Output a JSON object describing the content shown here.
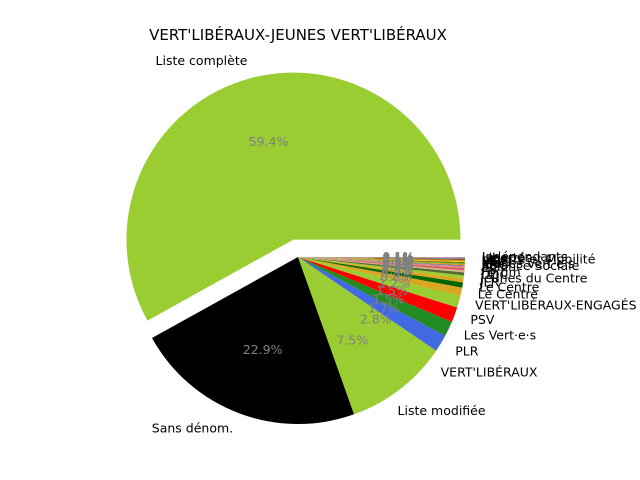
{
  "chart_data": {
    "type": "pie",
    "title": "VERT'LIBÉRAUX-JEUNES VERT'LIBÉRAUX",
    "start_angle_deg": 0,
    "direction": "counterclockwise",
    "exploded_slice": "Liste complète",
    "slices": [
      {
        "label": "Liste complète",
        "pct_label": "59.4%",
        "value": 59.4,
        "color": "#9acd32"
      },
      {
        "label": "Sans dénom.",
        "pct_label": "22.9%",
        "value": 22.9,
        "color": "#000000"
      },
      {
        "label": "Liste modifiée",
        "pct_label": "7.5%",
        "value": 7.5,
        "color": "#9acd32"
      },
      {
        "label": "VERT'LIBÉRAUX",
        "pct_label": "2.8%",
        "value": 2.8,
        "color": "#9acd32"
      },
      {
        "label": "PLR",
        "pct_label": "1.7%",
        "value": 1.7,
        "color": "#4169e1"
      },
      {
        "label": "Les Vert·e·s",
        "pct_label": "1.5%",
        "value": 1.5,
        "color": "#228b22"
      },
      {
        "label": "PSV",
        "pct_label": "1.5%",
        "value": 1.5,
        "color": "#ff0000"
      },
      {
        "label": "VERT'LIBÉRAUX-ENGAGÉS",
        "pct_label": "1.2%",
        "value": 1.2,
        "color": "#9acd32"
      },
      {
        "label": "Le Centre",
        "pct_label": "0.8%",
        "value": 0.8,
        "color": "#daa520"
      },
      {
        "label": "Le Centre",
        "pct_label": "0.5%",
        "value": 0.5,
        "color": "#006400"
      },
      {
        "label": "JLR",
        "pct_label": "0.4%",
        "value": 0.4,
        "color": "#daa520"
      },
      {
        "label": "Jeunes du Centre",
        "pct_label": "0.3%",
        "value": 0.3,
        "color": "#9acd32"
      },
      {
        "label": "UDC",
        "pct_label": "0.3%",
        "value": 0.3,
        "color": "#556b2f"
      },
      {
        "label": "Forum",
        "pct_label": "0.2%",
        "value": 0.2,
        "color": "#d2b48c"
      },
      {
        "label": "PS",
        "pct_label": "0.2%",
        "value": 0.2,
        "color": "#cd5c5c"
      },
      {
        "label": "JS",
        "pct_label": "0.2%",
        "value": 0.2,
        "color": "#f08080"
      },
      {
        "label": "Alliance Sociale",
        "pct_label": "0.1%",
        "value": 0.1,
        "color": "#4682b4"
      },
      {
        "label": "PDC",
        "pct_label": "0.1%",
        "value": 0.1,
        "color": "#ff8c00"
      },
      {
        "label": "Jeunes Vert·e·s",
        "pct_label": "0.1%",
        "value": 0.1,
        "color": "#32cd32"
      },
      {
        "label": "MCG",
        "pct_label": "0.1%",
        "value": 0.1,
        "color": "#8b4513"
      },
      {
        "label": "PEV",
        "pct_label": "0.1%",
        "value": 0.1,
        "color": "#ffd700"
      },
      {
        "label": "UDF",
        "pct_label": "0.1%",
        "value": 0.1,
        "color": "#b8860b"
      },
      {
        "label": "Liberté et Mobilité",
        "pct_label": "0.1%",
        "value": 0.1,
        "color": "#a0522d"
      },
      {
        "label": "Libertés",
        "pct_label": "0.1%",
        "value": 0.1,
        "color": "#708090"
      },
      {
        "label": "Indépendants",
        "pct_label": "0.1%",
        "value": 0.1,
        "color": "#bc8f8f"
      }
    ]
  }
}
